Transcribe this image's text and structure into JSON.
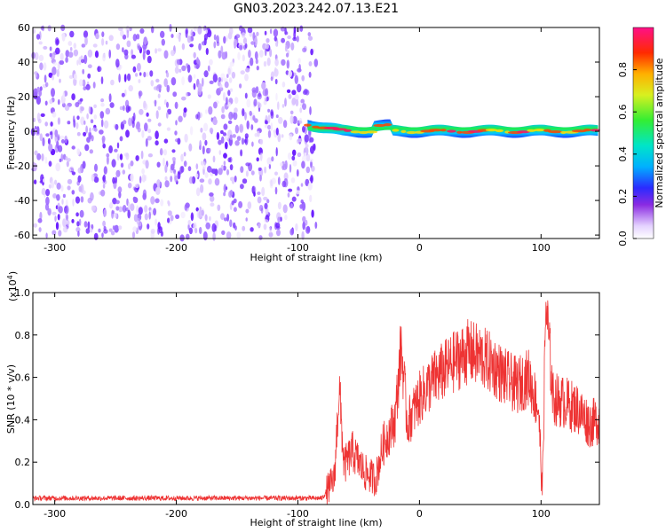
{
  "title": "GN03.2023.242.07.13.E21",
  "colorbar": {
    "label": "Normalized spectral amplitude",
    "ticks": [
      "0.0",
      "0.2",
      "0.4",
      "0.6",
      "0.8"
    ],
    "tick_values": [
      0.0,
      0.2,
      0.4,
      0.6,
      0.8
    ],
    "range": [
      0,
      1
    ]
  },
  "chart_data": [
    {
      "type": "heatmap",
      "xlabel": "Height of straight line (km)",
      "ylabel": "Frequency (Hz)",
      "xlim": [
        -318,
        148
      ],
      "ylim": [
        -62,
        60
      ],
      "xticks": [
        -300,
        -200,
        -100,
        0,
        100
      ],
      "xtick_labels": [
        "-300",
        "-200",
        "-100",
        "0",
        "100"
      ],
      "yticks": [
        -60,
        -40,
        -20,
        0,
        20,
        40,
        60
      ],
      "ytick_labels": [
        "-60",
        "-40",
        "-20",
        "0",
        "20",
        "40",
        "60"
      ],
      "noise_region_x": [
        -318,
        -85
      ],
      "signal_band_center_hz": 0,
      "signal_start_km": -92
    },
    {
      "type": "line",
      "xlabel": "Height of straight line (km)",
      "ylabel": "SNR (10 * v/v)",
      "y_multiplier": "(x10",
      "y_exponent": "4",
      "y_multiplier_close": ")",
      "xlim": [
        -318,
        148
      ],
      "ylim": [
        0,
        1.0
      ],
      "xticks": [
        -300,
        -200,
        -100,
        0,
        100
      ],
      "xtick_labels": [
        "-300",
        "-200",
        "-100",
        "0",
        "100"
      ],
      "yticks": [
        0,
        0.2,
        0.4,
        0.6,
        0.8,
        1.0
      ],
      "ytick_labels": [
        "0.0",
        "0.2",
        "0.4",
        "0.6",
        "0.8",
        "1.0"
      ],
      "series": [
        {
          "color": "#ee3333",
          "x": [
            -318,
            -250,
            -150,
            -80,
            -70,
            -66,
            -62,
            -55,
            -45,
            -36,
            -30,
            -20,
            -15,
            -10,
            0,
            10,
            20,
            30,
            40,
            50,
            60,
            70,
            80,
            90,
            98,
            101,
            104,
            110,
            120,
            130,
            140,
            148
          ],
          "y": [
            0.03,
            0.03,
            0.03,
            0.03,
            0.12,
            0.55,
            0.18,
            0.25,
            0.15,
            0.12,
            0.28,
            0.4,
            0.75,
            0.38,
            0.5,
            0.58,
            0.63,
            0.68,
            0.72,
            0.7,
            0.66,
            0.6,
            0.56,
            0.6,
            0.45,
            0.05,
            0.95,
            0.5,
            0.48,
            0.45,
            0.38,
            0.4
          ]
        }
      ]
    }
  ]
}
